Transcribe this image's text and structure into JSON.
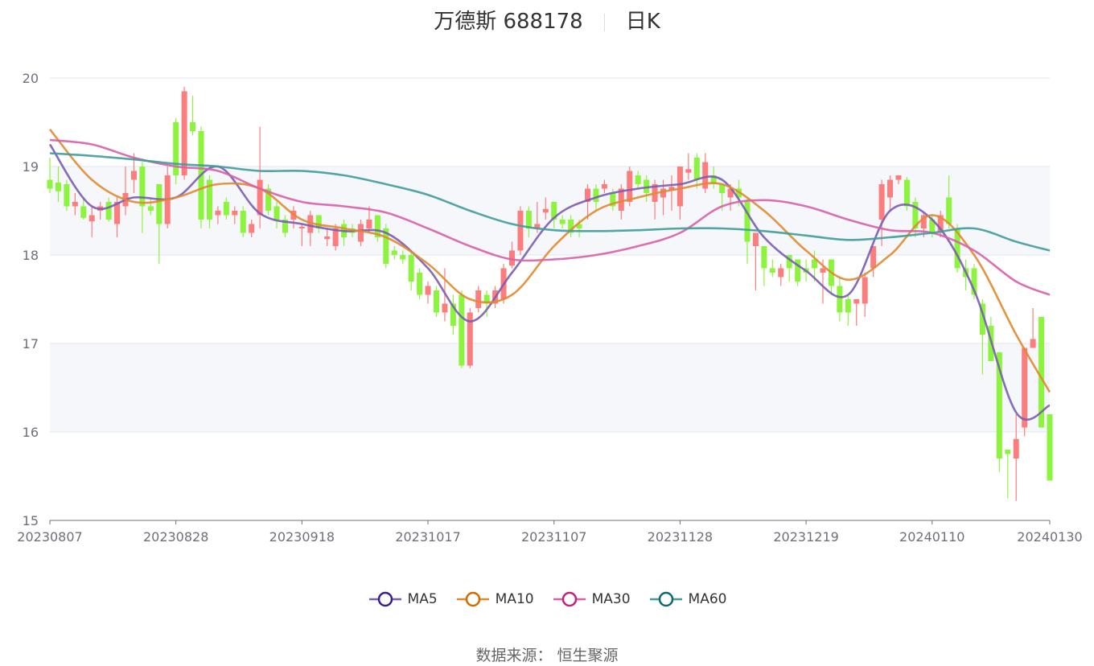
{
  "title": {
    "name": "万德斯 688178",
    "period": "日K"
  },
  "source": "数据来源：  恒生聚源",
  "colors": {
    "up": "#fc7d7d",
    "down": "#8df43e",
    "grid": "#e0e6f1",
    "band": "#f5f7fb"
  },
  "chart_data": {
    "type": "candlestick",
    "ylim": [
      15,
      20
    ],
    "yticks": [
      15,
      16,
      17,
      18,
      19,
      20
    ],
    "xticks": [
      {
        "index": 0,
        "label": "20230807"
      },
      {
        "index": 15,
        "label": "20230828"
      },
      {
        "index": 30,
        "label": "20230918"
      },
      {
        "index": 45,
        "label": "20231017"
      },
      {
        "index": 60,
        "label": "20231107"
      },
      {
        "index": 75,
        "label": "20231128"
      },
      {
        "index": 90,
        "label": "20231219"
      },
      {
        "index": 105,
        "label": "20240110"
      },
      {
        "index": 119,
        "label": "20240130"
      }
    ],
    "candles_ohlc": [
      [
        18.85,
        18.75,
        18.7,
        19.1
      ],
      [
        18.82,
        18.72,
        18.6,
        19.0
      ],
      [
        18.8,
        18.55,
        18.5,
        18.85
      ],
      [
        18.55,
        18.6,
        18.45,
        18.7
      ],
      [
        18.55,
        18.42,
        18.4,
        18.65
      ],
      [
        18.38,
        18.45,
        18.2,
        18.55
      ],
      [
        18.5,
        18.55,
        18.4,
        18.6
      ],
      [
        18.6,
        18.4,
        18.38,
        18.65
      ],
      [
        18.35,
        18.6,
        18.2,
        18.65
      ],
      [
        18.55,
        18.7,
        18.45,
        19.0
      ],
      [
        18.85,
        18.95,
        18.7,
        19.15
      ],
      [
        19.0,
        18.55,
        18.25,
        19.05
      ],
      [
        18.55,
        18.5,
        18.45,
        18.65
      ],
      [
        18.8,
        18.35,
        17.9,
        18.8
      ],
      [
        18.35,
        18.9,
        18.3,
        19.0
      ],
      [
        19.5,
        18.9,
        18.8,
        19.55
      ],
      [
        18.9,
        19.85,
        18.85,
        19.9
      ],
      [
        19.5,
        19.4,
        19.35,
        19.8
      ],
      [
        19.4,
        18.4,
        18.3,
        19.45
      ],
      [
        18.85,
        18.4,
        18.3,
        18.9
      ],
      [
        18.45,
        18.5,
        18.35,
        18.55
      ],
      [
        18.6,
        18.45,
        18.4,
        18.65
      ],
      [
        18.45,
        18.5,
        18.35,
        18.55
      ],
      [
        18.5,
        18.25,
        18.2,
        18.55
      ],
      [
        18.25,
        18.35,
        18.2,
        18.4
      ],
      [
        18.45,
        18.85,
        18.3,
        19.45
      ],
      [
        18.75,
        18.5,
        18.45,
        18.8
      ],
      [
        18.55,
        18.4,
        18.3,
        18.6
      ],
      [
        18.4,
        18.25,
        18.2,
        18.45
      ],
      [
        18.4,
        18.5,
        18.3,
        18.55
      ],
      [
        18.3,
        18.32,
        18.1,
        18.35
      ],
      [
        18.25,
        18.45,
        18.1,
        18.5
      ],
      [
        18.45,
        18.3,
        18.25,
        18.45
      ],
      [
        18.18,
        18.21,
        18.1,
        18.3
      ],
      [
        18.1,
        18.3,
        18.05,
        18.35
      ],
      [
        18.35,
        18.2,
        18.1,
        18.4
      ],
      [
        18.3,
        18.25,
        18.2,
        18.35
      ],
      [
        18.15,
        18.35,
        18.1,
        18.4
      ],
      [
        18.3,
        18.4,
        18.25,
        18.55
      ],
      [
        18.45,
        18.2,
        18.15,
        18.45
      ],
      [
        18.3,
        17.9,
        17.85,
        18.35
      ],
      [
        18.05,
        18.0,
        17.95,
        18.1
      ],
      [
        18.0,
        17.95,
        17.9,
        18.05
      ],
      [
        18.0,
        17.7,
        17.6,
        18.05
      ],
      [
        17.8,
        17.55,
        17.5,
        17.85
      ],
      [
        17.55,
        17.65,
        17.45,
        17.7
      ],
      [
        17.6,
        17.35,
        17.3,
        17.65
      ],
      [
        17.35,
        17.45,
        17.25,
        17.85
      ],
      [
        17.45,
        17.2,
        17.1,
        17.55
      ],
      [
        17.55,
        16.75,
        16.72,
        17.6
      ],
      [
        16.75,
        17.35,
        16.72,
        17.4
      ],
      [
        17.4,
        17.6,
        17.35,
        17.65
      ],
      [
        17.55,
        17.45,
        17.3,
        17.6
      ],
      [
        17.45,
        17.6,
        17.4,
        17.65
      ],
      [
        17.5,
        17.85,
        17.45,
        17.9
      ],
      [
        17.88,
        18.05,
        17.85,
        18.15
      ],
      [
        18.05,
        18.5,
        18.0,
        18.55
      ],
      [
        18.5,
        18.3,
        18.2,
        18.55
      ],
      [
        18.3,
        18.35,
        18.25,
        18.6
      ],
      [
        18.48,
        18.52,
        18.4,
        18.65
      ],
      [
        18.6,
        18.4,
        18.3,
        18.6
      ],
      [
        18.4,
        18.35,
        18.3,
        18.45
      ],
      [
        18.4,
        18.25,
        18.2,
        18.45
      ],
      [
        18.35,
        18.3,
        18.2,
        18.4
      ],
      [
        18.6,
        18.75,
        18.4,
        18.8
      ],
      [
        18.75,
        18.6,
        18.5,
        18.8
      ],
      [
        18.75,
        18.8,
        18.7,
        18.85
      ],
      [
        18.7,
        18.55,
        18.5,
        18.75
      ],
      [
        18.5,
        18.75,
        18.4,
        18.8
      ],
      [
        18.6,
        18.95,
        18.55,
        19.0
      ],
      [
        18.9,
        18.8,
        18.75,
        18.95
      ],
      [
        18.85,
        18.7,
        18.6,
        18.9
      ],
      [
        18.6,
        18.8,
        18.4,
        18.85
      ],
      [
        18.65,
        18.75,
        18.45,
        18.85
      ],
      [
        18.73,
        18.77,
        18.5,
        18.9
      ],
      [
        18.55,
        19.0,
        18.4,
        19.0
      ],
      [
        18.93,
        18.97,
        18.85,
        19.15
      ],
      [
        19.1,
        18.85,
        18.75,
        19.15
      ],
      [
        18.75,
        19.05,
        18.7,
        19.15
      ],
      [
        18.9,
        18.8,
        18.75,
        19.0
      ],
      [
        18.8,
        18.7,
        18.5,
        18.8
      ],
      [
        18.65,
        18.75,
        18.5,
        18.8
      ],
      [
        18.75,
        18.65,
        18.55,
        18.85
      ],
      [
        18.6,
        18.15,
        17.9,
        18.65
      ],
      [
        18.1,
        18.25,
        17.6,
        18.25
      ],
      [
        18.1,
        17.85,
        17.65,
        18.1
      ],
      [
        17.85,
        17.8,
        17.75,
        17.95
      ],
      [
        17.75,
        17.85,
        17.65,
        17.9
      ],
      [
        18.0,
        17.85,
        17.7,
        18.0
      ],
      [
        17.95,
        17.7,
        17.65,
        17.95
      ],
      [
        17.85,
        17.8,
        17.7,
        17.95
      ],
      [
        17.95,
        17.85,
        17.7,
        18.05
      ],
      [
        17.8,
        17.85,
        17.45,
        17.95
      ],
      [
        17.95,
        17.65,
        17.55,
        17.95
      ],
      [
        17.65,
        17.35,
        17.25,
        17.75
      ],
      [
        17.5,
        17.35,
        17.2,
        17.55
      ],
      [
        17.45,
        17.5,
        17.2,
        17.5
      ],
      [
        17.45,
        17.75,
        17.3,
        17.8
      ],
      [
        17.85,
        18.1,
        17.75,
        18.1
      ],
      [
        18.4,
        18.8,
        18.1,
        18.85
      ],
      [
        18.65,
        18.85,
        18.5,
        18.9
      ],
      [
        18.85,
        18.9,
        18.8,
        18.9
      ],
      [
        18.85,
        18.55,
        18.5,
        18.88
      ],
      [
        18.6,
        18.3,
        18.2,
        18.65
      ],
      [
        18.3,
        18.45,
        18.2,
        18.48
      ],
      [
        18.4,
        18.25,
        18.2,
        18.45
      ],
      [
        18.25,
        18.45,
        18.2,
        18.5
      ],
      [
        18.65,
        18.35,
        18.3,
        18.9
      ],
      [
        18.3,
        17.85,
        17.8,
        18.35
      ],
      [
        17.85,
        17.75,
        17.6,
        17.95
      ],
      [
        17.85,
        17.55,
        17.5,
        17.9
      ],
      [
        17.45,
        17.1,
        16.65,
        17.5
      ],
      [
        17.2,
        16.8,
        16.8,
        17.3
      ],
      [
        16.9,
        15.7,
        15.55,
        16.9
      ],
      [
        15.8,
        15.75,
        15.25,
        15.8
      ],
      [
        15.7,
        15.92,
        15.22,
        16.2
      ],
      [
        16.05,
        16.95,
        15.95,
        16.95
      ],
      [
        16.95,
        17.05,
        16.95,
        17.4
      ],
      [
        17.3,
        16.05,
        16.05,
        17.3
      ],
      [
        16.2,
        15.45,
        15.45,
        16.2
      ]
    ],
    "series": [
      {
        "name": "MA5",
        "color": "#7a5cb2",
        "marker": "#3a1e8c",
        "sample_every": 5,
        "values": [
          19.25,
          18.55,
          18.65,
          18.65,
          19.0,
          18.47,
          18.35,
          18.27,
          18.25,
          17.85,
          17.25,
          17.8,
          18.42,
          18.65,
          18.75,
          18.8,
          18.85,
          18.2,
          17.82,
          17.55,
          18.5,
          18.4,
          17.6,
          16.22,
          16.3
        ]
      },
      {
        "name": "MA10",
        "color": "#e08a30",
        "marker": "#d46a00",
        "sample_every": 5,
        "values": [
          19.42,
          18.85,
          18.6,
          18.65,
          18.8,
          18.75,
          18.4,
          18.3,
          18.2,
          17.9,
          17.5,
          17.55,
          18.1,
          18.5,
          18.65,
          18.75,
          18.8,
          18.5,
          18.05,
          17.72,
          18.0,
          18.45,
          18.0,
          17.1,
          16.45
        ]
      },
      {
        "name": "MA30",
        "color": "#d760a8",
        "marker": "#c3207f",
        "sample_every": 5,
        "values": [
          19.3,
          19.25,
          19.1,
          19.0,
          18.95,
          18.75,
          18.6,
          18.55,
          18.48,
          18.3,
          18.1,
          17.95,
          17.95,
          18.0,
          18.1,
          18.25,
          18.55,
          18.62,
          18.55,
          18.4,
          18.28,
          18.25,
          18.05,
          17.7,
          17.55
        ]
      },
      {
        "name": "MA60",
        "color": "#419b9b",
        "marker": "#0c6b6b",
        "sample_every": 5,
        "values": [
          19.15,
          19.12,
          19.08,
          19.03,
          19.0,
          18.95,
          18.95,
          18.9,
          18.8,
          18.68,
          18.5,
          18.35,
          18.28,
          18.27,
          18.28,
          18.3,
          18.3,
          18.27,
          18.22,
          18.17,
          18.2,
          18.25,
          18.3,
          18.15,
          18.05
        ]
      }
    ]
  }
}
